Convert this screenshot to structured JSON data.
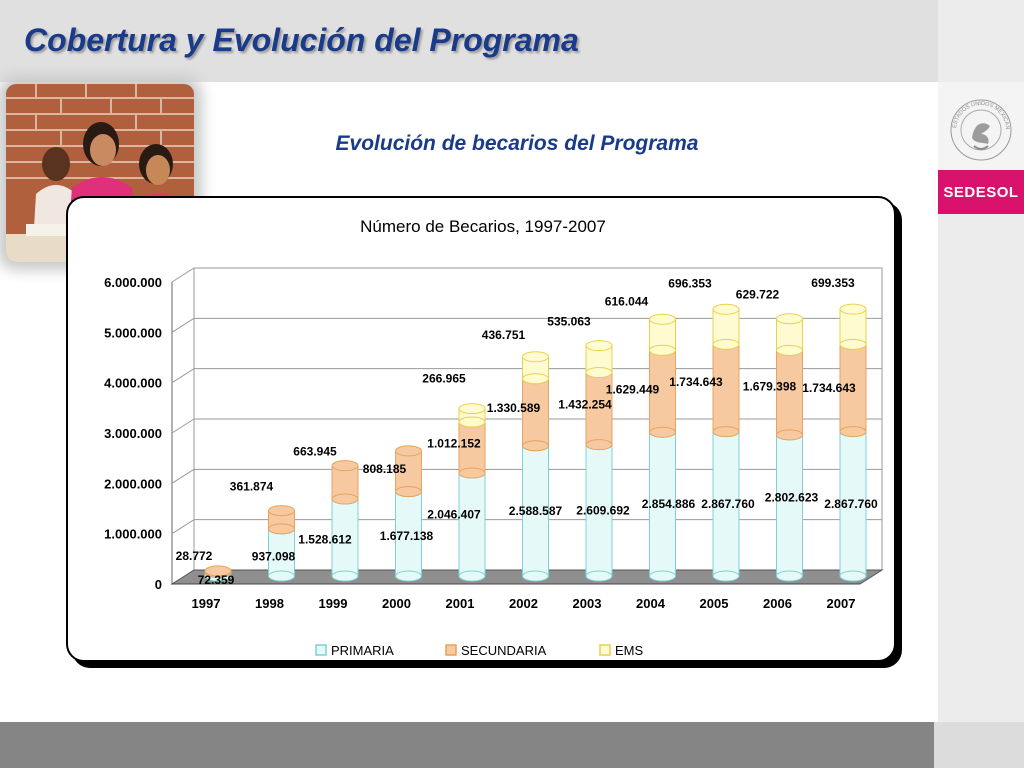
{
  "page": {
    "title": "Cobertura y Evolución del Programa",
    "subtitle": "Evolución de becarios del Programa",
    "brand": "SEDESOL",
    "seal_text": "ESTADOS UNIDOS MEXICANOS",
    "photo_icon": "students-photo",
    "colors": {
      "title": "#1a3a8a",
      "brand_bg": "#d8126c",
      "header_bg": "#e0e0e0",
      "footer_bg": "#858585"
    }
  },
  "chart_data": {
    "type": "bar",
    "stacked": true,
    "title": "Número de Becarios, 1997-2007",
    "xlabel": "",
    "ylabel": "",
    "ylim": [
      0,
      6000000
    ],
    "yticks": [
      "0",
      "1.000.000",
      "2.000.000",
      "3.000.000",
      "4.000.000",
      "5.000.000",
      "6.000.000"
    ],
    "grid": true,
    "legend_position": "bottom",
    "categories": [
      "1997",
      "1998",
      "1999",
      "2000",
      "2001",
      "2002",
      "2003",
      "2004",
      "2005",
      "2006",
      "2007"
    ],
    "series": [
      {
        "name": "PRIMARIA",
        "color": "#e6f9f9",
        "edge": "#7fd0d6",
        "values": [
          72359,
          937098,
          1528612,
          1677138,
          2046407,
          2588587,
          2609692,
          2854886,
          2867760,
          2802623,
          2867760
        ],
        "labels": [
          "72.359",
          "937.098",
          "1.528.612",
          "1.677.138",
          "2.046.407",
          "2.588.587",
          "2.609.692",
          "2.854.886",
          "2.867.760",
          "2.802.623",
          "2.867.760"
        ]
      },
      {
        "name": "SECUNDARIA",
        "color": "#f7c9a0",
        "edge": "#e8a35c",
        "values": [
          28772,
          361874,
          663945,
          808185,
          1012152,
          1330589,
          1432254,
          1629449,
          1734643,
          1679398,
          1734643
        ],
        "labels": [
          "28.772",
          "361.874",
          "663.945",
          "808.185",
          "1.012.152",
          "1.330.589",
          "1.432.254",
          "1.629.449",
          "1.734.643",
          "1.679.398",
          "1.734.643"
        ]
      },
      {
        "name": "EMS",
        "color": "#fffbd0",
        "edge": "#e8d24a",
        "values": [
          0,
          0,
          0,
          0,
          266965,
          436751,
          535063,
          616044,
          696353,
          629722,
          699353
        ],
        "labels": [
          "",
          "",
          "",
          "",
          "266.965",
          "436.751",
          "535.063",
          "616.044",
          "696.353",
          "629.722",
          "699.353"
        ]
      }
    ]
  }
}
